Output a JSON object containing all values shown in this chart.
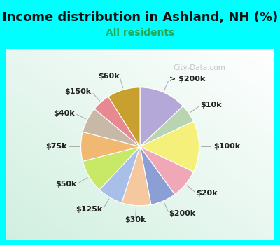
{
  "title": "Income distribution in Ashland, NH (%)",
  "subtitle": "All residents",
  "watermark": "City-Data.com",
  "bg_cyan": "#00FFFF",
  "bg_inner": "#daeee4",
  "labels": [
    "> $200k",
    "$10k",
    "$100k",
    "$20k",
    "$200k",
    "$30k",
    "$125k",
    "$50k",
    "$75k",
    "$40k",
    "$150k",
    "$60k"
  ],
  "values": [
    13,
    5,
    14,
    8,
    7,
    8,
    7,
    9,
    8,
    7,
    5,
    9
  ],
  "colors": [
    "#b3a8d8",
    "#b8d4b0",
    "#f5f07a",
    "#f0a8b8",
    "#8c9fd4",
    "#f5c8a0",
    "#a8c0e8",
    "#c8e868",
    "#f0b870",
    "#c8b8a8",
    "#e88890",
    "#c8a030"
  ],
  "label_fontsize": 8,
  "title_fontsize": 13,
  "subtitle_fontsize": 10,
  "title_color": "#111111",
  "subtitle_color": "#22aa55",
  "label_color": "#222222"
}
